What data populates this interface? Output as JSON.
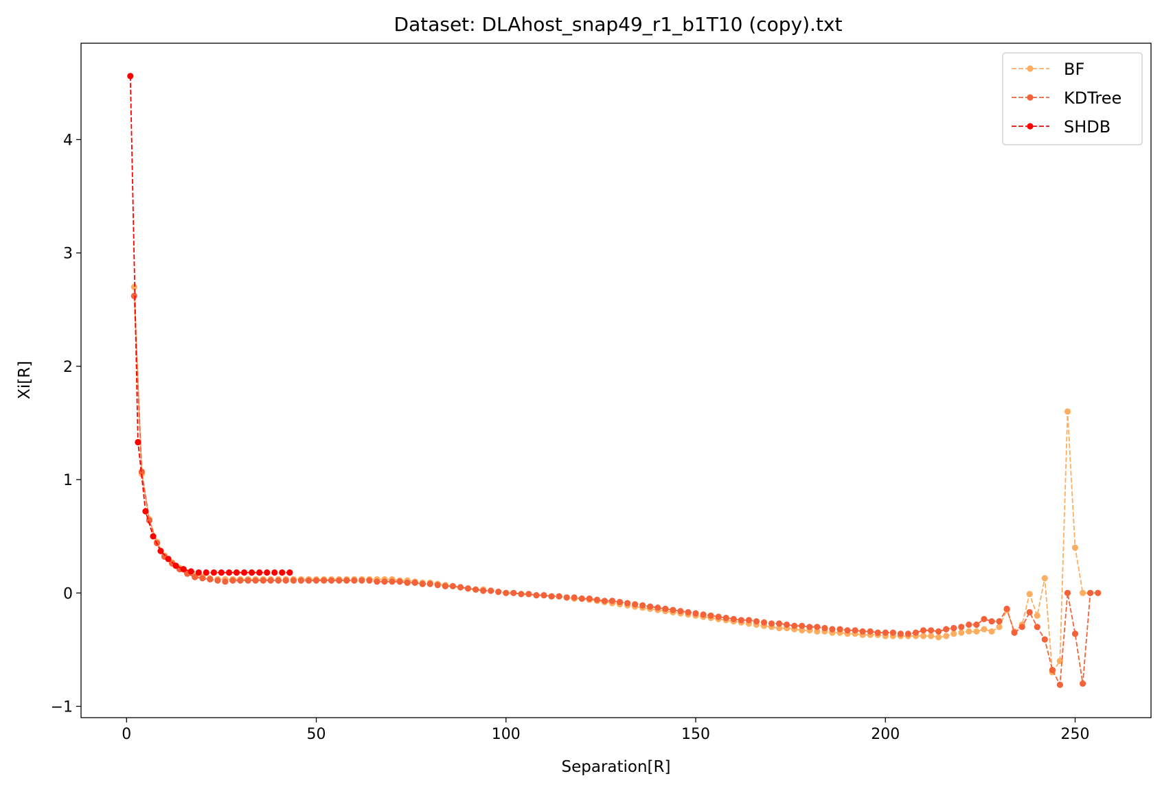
{
  "chart_data": {
    "type": "line",
    "title": "Dataset: DLAhost_snap49_r1_b1T10 (copy).txt",
    "xlabel": "Separation[R]",
    "ylabel": "Xi[R]",
    "xlim": [
      -12,
      270
    ],
    "ylim": [
      -1.1,
      4.85
    ],
    "xticks": [
      0,
      50,
      100,
      150,
      200,
      250
    ],
    "yticks": [
      -1,
      0,
      1,
      2,
      3,
      4
    ],
    "xtick_labels": [
      "0",
      "50",
      "100",
      "150",
      "200",
      "250"
    ],
    "ytick_labels": [
      "−1",
      "0",
      "1",
      "2",
      "3",
      "4"
    ],
    "grid": false,
    "legend_position": "top-right",
    "series": [
      {
        "name": "BF",
        "color": "#fdae61",
        "linestyle": "dashed",
        "marker": "circle",
        "x": [
          2,
          4,
          6,
          8,
          10,
          12,
          14,
          16,
          18,
          20,
          22,
          24,
          26,
          28,
          30,
          32,
          34,
          36,
          38,
          40,
          42,
          44,
          46,
          48,
          50,
          52,
          54,
          56,
          58,
          60,
          62,
          64,
          66,
          68,
          70,
          72,
          74,
          76,
          78,
          80,
          82,
          84,
          86,
          88,
          90,
          92,
          94,
          96,
          98,
          100,
          102,
          104,
          106,
          108,
          110,
          112,
          114,
          116,
          118,
          120,
          122,
          124,
          126,
          128,
          130,
          132,
          134,
          136,
          138,
          140,
          142,
          144,
          146,
          148,
          150,
          152,
          154,
          156,
          158,
          160,
          162,
          164,
          166,
          168,
          170,
          172,
          174,
          176,
          178,
          180,
          182,
          184,
          186,
          188,
          190,
          192,
          194,
          196,
          198,
          200,
          202,
          204,
          206,
          208,
          210,
          212,
          214,
          216,
          218,
          220,
          222,
          224,
          226,
          228,
          230,
          232,
          234,
          236,
          238,
          240,
          242,
          244,
          246,
          248,
          250,
          252,
          254,
          256
        ],
        "y": [
          2.7,
          1.05,
          0.65,
          0.45,
          0.33,
          0.27,
          0.22,
          0.18,
          0.15,
          0.14,
          0.13,
          0.12,
          0.12,
          0.12,
          0.12,
          0.12,
          0.12,
          0.12,
          0.12,
          0.12,
          0.12,
          0.12,
          0.12,
          0.12,
          0.12,
          0.12,
          0.12,
          0.12,
          0.12,
          0.12,
          0.12,
          0.12,
          0.12,
          0.12,
          0.12,
          0.11,
          0.11,
          0.1,
          0.09,
          0.09,
          0.08,
          0.07,
          0.06,
          0.05,
          0.04,
          0.03,
          0.03,
          0.02,
          0.01,
          0.0,
          0.0,
          -0.01,
          -0.01,
          -0.02,
          -0.02,
          -0.03,
          -0.03,
          -0.04,
          -0.05,
          -0.05,
          -0.06,
          -0.07,
          -0.08,
          -0.09,
          -0.1,
          -0.11,
          -0.12,
          -0.13,
          -0.14,
          -0.15,
          -0.16,
          -0.17,
          -0.18,
          -0.19,
          -0.2,
          -0.21,
          -0.22,
          -0.23,
          -0.24,
          -0.25,
          -0.26,
          -0.27,
          -0.28,
          -0.29,
          -0.3,
          -0.31,
          -0.31,
          -0.32,
          -0.33,
          -0.33,
          -0.34,
          -0.34,
          -0.35,
          -0.35,
          -0.36,
          -0.36,
          -0.37,
          -0.37,
          -0.37,
          -0.38,
          -0.38,
          -0.38,
          -0.38,
          -0.38,
          -0.38,
          -0.38,
          -0.39,
          -0.38,
          -0.36,
          -0.35,
          -0.34,
          -0.34,
          -0.32,
          -0.34,
          -0.3,
          -0.15,
          -0.34,
          -0.28,
          -0.01,
          -0.2,
          0.13,
          -0.7,
          -0.6,
          1.6,
          0.4,
          0.0,
          0.0,
          0.0
        ]
      },
      {
        "name": "KDTree",
        "color": "#f4623a",
        "linestyle": "dashed",
        "marker": "circle",
        "x": [
          2,
          4,
          6,
          8,
          10,
          12,
          14,
          16,
          18,
          20,
          22,
          24,
          26,
          28,
          30,
          32,
          34,
          36,
          38,
          40,
          42,
          44,
          46,
          48,
          50,
          52,
          54,
          56,
          58,
          60,
          62,
          64,
          66,
          68,
          70,
          72,
          74,
          76,
          78,
          80,
          82,
          84,
          86,
          88,
          90,
          92,
          94,
          96,
          98,
          100,
          102,
          104,
          106,
          108,
          110,
          112,
          114,
          116,
          118,
          120,
          122,
          124,
          126,
          128,
          130,
          132,
          134,
          136,
          138,
          140,
          142,
          144,
          146,
          148,
          150,
          152,
          154,
          156,
          158,
          160,
          162,
          164,
          166,
          168,
          170,
          172,
          174,
          176,
          178,
          180,
          182,
          184,
          186,
          188,
          190,
          192,
          194,
          196,
          198,
          200,
          202,
          204,
          206,
          208,
          210,
          212,
          214,
          216,
          218,
          220,
          222,
          224,
          226,
          228,
          230,
          232,
          234,
          236,
          238,
          240,
          242,
          244,
          246,
          248,
          250,
          252,
          254,
          256
        ],
        "y": [
          2.62,
          1.07,
          0.64,
          0.44,
          0.32,
          0.26,
          0.21,
          0.17,
          0.14,
          0.13,
          0.12,
          0.11,
          0.1,
          0.11,
          0.11,
          0.11,
          0.11,
          0.11,
          0.11,
          0.11,
          0.11,
          0.11,
          0.11,
          0.11,
          0.11,
          0.11,
          0.11,
          0.11,
          0.11,
          0.11,
          0.11,
          0.11,
          0.1,
          0.1,
          0.1,
          0.1,
          0.09,
          0.09,
          0.08,
          0.08,
          0.07,
          0.06,
          0.06,
          0.05,
          0.04,
          0.03,
          0.02,
          0.02,
          0.01,
          0.0,
          0.0,
          -0.01,
          -0.01,
          -0.02,
          -0.02,
          -0.03,
          -0.03,
          -0.04,
          -0.04,
          -0.05,
          -0.05,
          -0.06,
          -0.07,
          -0.07,
          -0.08,
          -0.09,
          -0.1,
          -0.11,
          -0.12,
          -0.13,
          -0.14,
          -0.15,
          -0.16,
          -0.17,
          -0.18,
          -0.19,
          -0.2,
          -0.21,
          -0.22,
          -0.23,
          -0.24,
          -0.24,
          -0.25,
          -0.26,
          -0.27,
          -0.27,
          -0.28,
          -0.29,
          -0.29,
          -0.3,
          -0.3,
          -0.31,
          -0.32,
          -0.32,
          -0.33,
          -0.33,
          -0.34,
          -0.34,
          -0.35,
          -0.35,
          -0.35,
          -0.36,
          -0.36,
          -0.35,
          -0.33,
          -0.33,
          -0.34,
          -0.32,
          -0.31,
          -0.3,
          -0.28,
          -0.28,
          -0.23,
          -0.25,
          -0.25,
          -0.14,
          -0.35,
          -0.3,
          -0.17,
          -0.3,
          -0.41,
          -0.68,
          -0.81,
          0.0,
          -0.36,
          -0.8,
          0.0,
          0.0
        ]
      },
      {
        "name": "SHDB",
        "color": "#ff0000",
        "linestyle": "dashed",
        "marker": "circle",
        "x": [
          1,
          3,
          5,
          7,
          9,
          11,
          13,
          15,
          17,
          19,
          21,
          23,
          25,
          27,
          29,
          31,
          33,
          35,
          37,
          39,
          41,
          43
        ],
        "y": [
          4.56,
          1.33,
          0.72,
          0.5,
          0.37,
          0.3,
          0.24,
          0.21,
          0.19,
          0.18,
          0.18,
          0.18,
          0.18,
          0.18,
          0.18,
          0.18,
          0.18,
          0.18,
          0.18,
          0.18,
          0.18,
          0.18
        ]
      }
    ]
  }
}
